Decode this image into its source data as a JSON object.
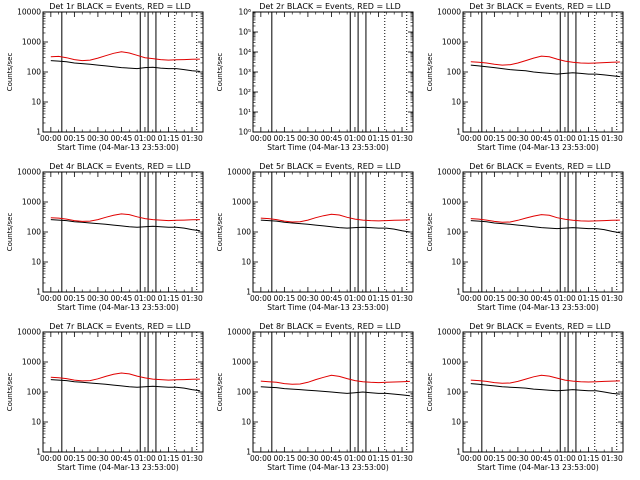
{
  "colors": {
    "events": "#000000",
    "lld": "#e00000",
    "background": "#ffffff"
  },
  "xtick_labels": [
    "00:00",
    "00:15",
    "00:30",
    "00:45",
    "01:00",
    "01:15",
    "01:30"
  ],
  "xlabel": "Start Time (04-Mar-13 23:53:00)",
  "chart_data": [
    {
      "type": "line",
      "title": "Det 1r BLACK = Events, RED = LLD",
      "ylabel": "Counts/sec",
      "log_y": true,
      "ylim": [
        1,
        10000
      ],
      "ytick_labels": [
        "1",
        "10",
        "100",
        "1000",
        "10000"
      ],
      "xlim_minutes": [
        -5,
        97
      ],
      "x_minutes": [
        0,
        5,
        10,
        15,
        20,
        25,
        30,
        35,
        40,
        45,
        50,
        55,
        60,
        65,
        70,
        75,
        80,
        85,
        90,
        95
      ],
      "series": [
        {
          "name": "Events",
          "color": "black",
          "values": [
            240,
            230,
            220,
            200,
            190,
            180,
            170,
            160,
            150,
            140,
            135,
            130,
            140,
            145,
            135,
            130,
            130,
            120,
            110,
            105
          ]
        },
        {
          "name": "LLD",
          "color": "red",
          "values": [
            320,
            330,
            300,
            260,
            240,
            250,
            290,
            350,
            420,
            470,
            430,
            360,
            300,
            280,
            260,
            250,
            255,
            260,
            265,
            270
          ]
        }
      ],
      "solid_vlines_minutes": [
        7,
        57,
        62,
        67
      ],
      "dotted_vlines_minutes": [
        79,
        93
      ]
    },
    {
      "type": "line",
      "title": "Det 2r BLACK = Events, RED = LLD",
      "ylabel": "Counts/sec",
      "log_y": true,
      "ylim": [
        1,
        1000000
      ],
      "ytick_labels": [
        "10⁰",
        "10¹",
        "10²",
        "10³",
        "10⁴",
        "10⁵",
        "10⁶"
      ],
      "xlim_minutes": [
        -5,
        97
      ],
      "x_minutes": [],
      "series": [],
      "solid_vlines_minutes": [
        7,
        57,
        62,
        67
      ],
      "dotted_vlines_minutes": [
        79,
        93
      ]
    },
    {
      "type": "line",
      "title": "Det 3r BLACK = Events, RED = LLD",
      "ylabel": "Counts/sec",
      "log_y": true,
      "ylim": [
        1,
        10000
      ],
      "ytick_labels": [
        "1",
        "10",
        "100",
        "1000",
        "10000"
      ],
      "xlim_minutes": [
        -5,
        97
      ],
      "x_minutes": [
        0,
        5,
        10,
        15,
        20,
        25,
        30,
        35,
        40,
        45,
        50,
        55,
        60,
        65,
        70,
        75,
        80,
        85,
        90,
        95
      ],
      "series": [
        {
          "name": "Events",
          "color": "black",
          "values": [
            170,
            160,
            150,
            140,
            130,
            120,
            115,
            110,
            100,
            95,
            90,
            85,
            90,
            95,
            90,
            85,
            85,
            80,
            75,
            70
          ]
        },
        {
          "name": "LLD",
          "color": "red",
          "values": [
            220,
            210,
            200,
            180,
            170,
            175,
            200,
            240,
            290,
            340,
            320,
            270,
            230,
            210,
            200,
            195,
            200,
            205,
            210,
            215
          ]
        }
      ],
      "solid_vlines_minutes": [
        7,
        57,
        62,
        67
      ],
      "dotted_vlines_minutes": [
        79,
        93
      ]
    },
    {
      "type": "line",
      "title": "Det 4r BLACK = Events, RED = LLD",
      "ylabel": "Counts/sec",
      "log_y": true,
      "ylim": [
        1,
        10000
      ],
      "ytick_labels": [
        "1",
        "10",
        "100",
        "1000",
        "10000"
      ],
      "xlim_minutes": [
        -5,
        97
      ],
      "x_minutes": [
        0,
        5,
        10,
        15,
        20,
        25,
        30,
        35,
        40,
        45,
        50,
        55,
        60,
        65,
        70,
        75,
        80,
        85,
        90,
        95
      ],
      "series": [
        {
          "name": "Events",
          "color": "black",
          "values": [
            260,
            250,
            240,
            220,
            210,
            200,
            190,
            180,
            170,
            160,
            150,
            145,
            150,
            155,
            150,
            145,
            145,
            135,
            120,
            110
          ]
        },
        {
          "name": "LLD",
          "color": "red",
          "values": [
            300,
            290,
            270,
            240,
            225,
            230,
            260,
            310,
            360,
            400,
            380,
            320,
            280,
            260,
            250,
            240,
            245,
            250,
            255,
            260
          ]
        }
      ],
      "solid_vlines_minutes": [
        7,
        57,
        62,
        67
      ],
      "dotted_vlines_minutes": [
        79,
        93
      ]
    },
    {
      "type": "line",
      "title": "Det 5r BLACK = Events, RED = LLD",
      "ylabel": "Counts/sec",
      "log_y": true,
      "ylim": [
        1,
        10000
      ],
      "ytick_labels": [
        "1",
        "10",
        "100",
        "1000",
        "10000"
      ],
      "xlim_minutes": [
        -5,
        97
      ],
      "x_minutes": [
        0,
        5,
        10,
        15,
        20,
        25,
        30,
        35,
        40,
        45,
        50,
        55,
        60,
        65,
        70,
        75,
        80,
        85,
        90,
        95
      ],
      "series": [
        {
          "name": "Events",
          "color": "black",
          "values": [
            250,
            240,
            230,
            210,
            200,
            190,
            180,
            170,
            160,
            150,
            140,
            135,
            140,
            145,
            140,
            135,
            135,
            125,
            110,
            100
          ]
        },
        {
          "name": "LLD",
          "color": "red",
          "values": [
            290,
            280,
            260,
            230,
            215,
            220,
            250,
            300,
            350,
            390,
            370,
            310,
            270,
            250,
            240,
            235,
            240,
            245,
            250,
            255
          ]
        }
      ],
      "solid_vlines_minutes": [
        7,
        57,
        62,
        67
      ],
      "dotted_vlines_minutes": [
        79,
        93
      ]
    },
    {
      "type": "line",
      "title": "Det 6r BLACK = Events, RED = LLD",
      "ylabel": "Counts/sec",
      "log_y": true,
      "ylim": [
        1,
        10000
      ],
      "ytick_labels": [
        "1",
        "10",
        "100",
        "1000",
        "10000"
      ],
      "xlim_minutes": [
        -5,
        97
      ],
      "x_minutes": [
        0,
        5,
        10,
        15,
        20,
        25,
        30,
        35,
        40,
        45,
        50,
        55,
        60,
        65,
        70,
        75,
        80,
        85,
        90,
        95
      ],
      "series": [
        {
          "name": "Events",
          "color": "black",
          "values": [
            240,
            230,
            220,
            200,
            190,
            180,
            170,
            160,
            150,
            140,
            135,
            130,
            135,
            140,
            135,
            130,
            130,
            120,
            105,
            95
          ]
        },
        {
          "name": "LLD",
          "color": "red",
          "values": [
            280,
            270,
            250,
            225,
            210,
            215,
            245,
            290,
            340,
            380,
            360,
            300,
            265,
            245,
            235,
            230,
            235,
            240,
            245,
            250
          ]
        }
      ],
      "solid_vlines_minutes": [
        7,
        57,
        62,
        67
      ],
      "dotted_vlines_minutes": [
        79,
        93
      ]
    },
    {
      "type": "line",
      "title": "Det 7r BLACK = Events, RED = LLD",
      "ylabel": "Counts/sec",
      "log_y": true,
      "ylim": [
        1,
        10000
      ],
      "ytick_labels": [
        "1",
        "10",
        "100",
        "1000",
        "10000"
      ],
      "xlim_minutes": [
        -5,
        97
      ],
      "x_minutes": [
        0,
        5,
        10,
        15,
        20,
        25,
        30,
        35,
        40,
        45,
        50,
        55,
        60,
        65,
        70,
        75,
        80,
        85,
        90,
        95
      ],
      "series": [
        {
          "name": "Events",
          "color": "black",
          "values": [
            260,
            250,
            240,
            220,
            210,
            200,
            190,
            180,
            170,
            160,
            150,
            145,
            150,
            155,
            150,
            145,
            145,
            135,
            120,
            110
          ]
        },
        {
          "name": "LLD",
          "color": "red",
          "values": [
            310,
            300,
            280,
            250,
            235,
            240,
            275,
            330,
            390,
            430,
            400,
            340,
            295,
            270,
            260,
            250,
            255,
            260,
            265,
            270
          ]
        }
      ],
      "solid_vlines_minutes": [
        7,
        57,
        62,
        67
      ],
      "dotted_vlines_minutes": [
        79,
        93
      ]
    },
    {
      "type": "line",
      "title": "Det 8r BLACK = Events, RED = LLD",
      "ylabel": "Counts/sec",
      "log_y": true,
      "ylim": [
        1,
        10000
      ],
      "ytick_labels": [
        "1",
        "10",
        "100",
        "1000",
        "10000"
      ],
      "xlim_minutes": [
        -5,
        97
      ],
      "x_minutes": [
        0,
        5,
        10,
        15,
        20,
        25,
        30,
        35,
        40,
        45,
        50,
        55,
        60,
        65,
        70,
        75,
        80,
        85,
        90,
        95
      ],
      "series": [
        {
          "name": "Events",
          "color": "black",
          "values": [
            150,
            145,
            140,
            130,
            125,
            120,
            115,
            110,
            105,
            100,
            95,
            90,
            95,
            100,
            95,
            90,
            90,
            85,
            80,
            75
          ]
        },
        {
          "name": "LLD",
          "color": "red",
          "values": [
            230,
            220,
            210,
            190,
            180,
            185,
            210,
            260,
            310,
            360,
            330,
            280,
            240,
            220,
            210,
            205,
            210,
            215,
            220,
            225
          ]
        }
      ],
      "solid_vlines_minutes": [
        7,
        57,
        62,
        67
      ],
      "dotted_vlines_minutes": [
        79,
        93
      ]
    },
    {
      "type": "line",
      "title": "Det 9r BLACK = Events, RED = LLD",
      "ylabel": "Counts/sec",
      "log_y": true,
      "ylim": [
        1,
        10000
      ],
      "ytick_labels": [
        "1",
        "10",
        "100",
        "1000",
        "10000"
      ],
      "xlim_minutes": [
        -5,
        97
      ],
      "x_minutes": [
        0,
        5,
        10,
        15,
        20,
        25,
        30,
        35,
        40,
        45,
        50,
        55,
        60,
        65,
        70,
        75,
        80,
        85,
        90,
        95
      ],
      "series": [
        {
          "name": "Events",
          "color": "black",
          "values": [
            190,
            180,
            170,
            160,
            150,
            145,
            140,
            135,
            125,
            120,
            115,
            110,
            115,
            120,
            115,
            110,
            110,
            100,
            90,
            85
          ]
        },
        {
          "name": "LLD",
          "color": "red",
          "values": [
            250,
            240,
            225,
            205,
            195,
            200,
            225,
            270,
            320,
            360,
            340,
            290,
            250,
            230,
            220,
            215,
            220,
            225,
            230,
            235
          ]
        }
      ],
      "solid_vlines_minutes": [
        7,
        57,
        62,
        67
      ],
      "dotted_vlines_minutes": [
        79,
        93
      ]
    }
  ]
}
